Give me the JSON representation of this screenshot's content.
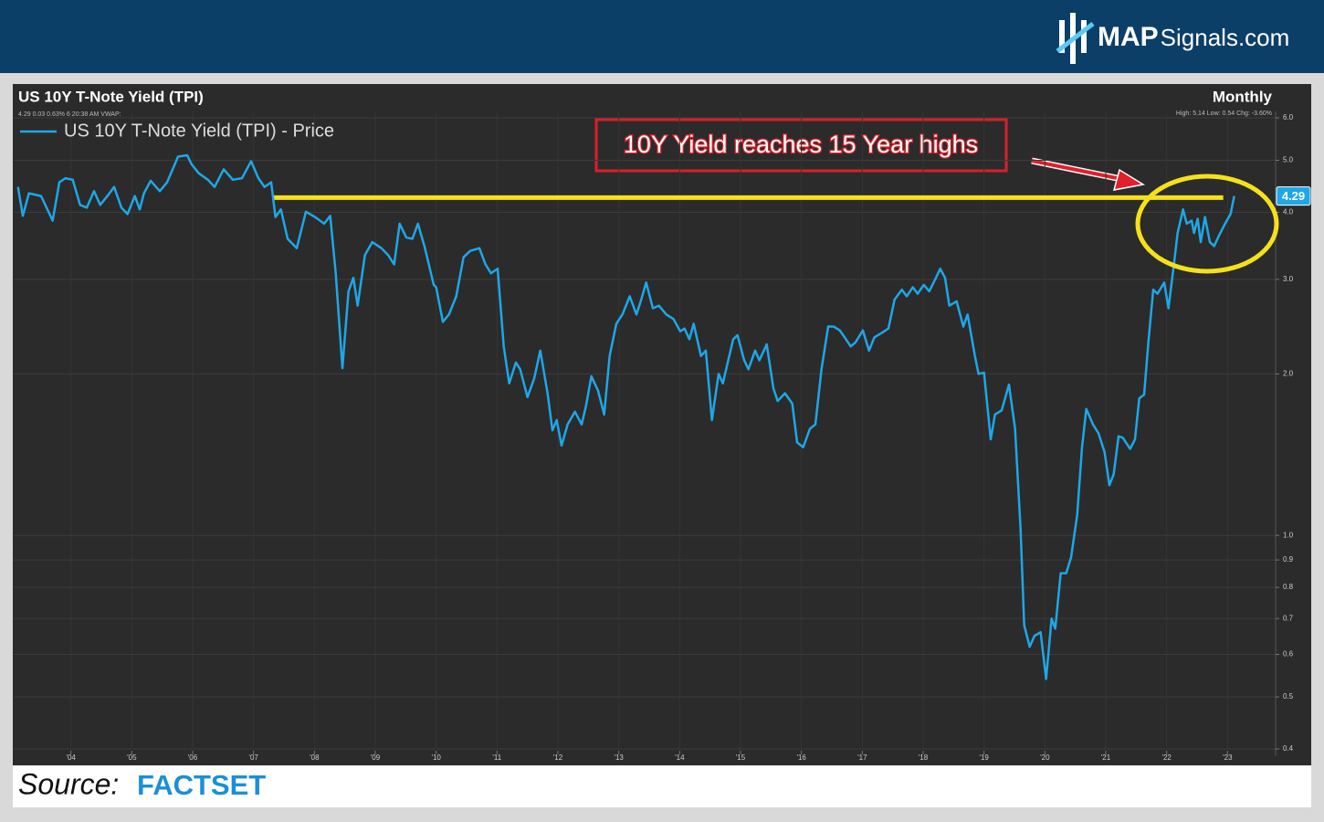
{
  "header": {
    "brand_bold": "MAP",
    "brand_rest": "Signals.com"
  },
  "footer": {
    "source": "Source:",
    "provider": "FACTSET"
  },
  "chart_data": {
    "type": "line",
    "title": "US 10Y T-Note Yield (TPI)",
    "subtitle": "4.29 0.03 0.63% 6:20:38 AM VWAP:",
    "period": "Monthly",
    "stats": "High: 5.14 Low: 0.54 Chg: -3.60%",
    "annotation": "10Y Yield reaches 15 Year highs",
    "reference_line": {
      "value": 4.26,
      "x": [
        2007.33,
        2022.93
      ],
      "color": "#f5e11b"
    },
    "y_scale": "log",
    "grid": true,
    "legend": "top-left",
    "xlim": [
      2003.06,
      2023.79
    ],
    "xticks": [
      {
        "value": 2004,
        "label": "'04"
      },
      {
        "value": 2005,
        "label": "'05"
      },
      {
        "value": 2006,
        "label": "'06"
      },
      {
        "value": 2007,
        "label": "'07"
      },
      {
        "value": 2008,
        "label": "'08"
      },
      {
        "value": 2009,
        "label": "'09"
      },
      {
        "value": 2010,
        "label": "'10"
      },
      {
        "value": 2011,
        "label": "'11"
      },
      {
        "value": 2012,
        "label": "'12"
      },
      {
        "value": 2013,
        "label": "'13"
      },
      {
        "value": 2014,
        "label": "'14"
      },
      {
        "value": 2015,
        "label": "'15"
      },
      {
        "value": 2016,
        "label": "'16"
      },
      {
        "value": 2017,
        "label": "'17"
      },
      {
        "value": 2018,
        "label": "'18"
      },
      {
        "value": 2019,
        "label": "'19"
      },
      {
        "value": 2020,
        "label": "'20"
      },
      {
        "value": 2021,
        "label": "'21"
      },
      {
        "value": 2022,
        "label": "'22"
      },
      {
        "value": 2023,
        "label": "'23"
      }
    ],
    "ylim": [
      0.4,
      6
    ],
    "yticks": [
      0.4,
      0.5,
      0.6,
      0.7,
      0.8,
      0.9,
      {
        "value": 1,
        "label": "1.0"
      },
      {
        "value": 2,
        "label": "2.0"
      },
      {
        "value": 3,
        "label": "3.0"
      },
      {
        "value": 4,
        "label": "4.0"
      },
      {
        "value": 5,
        "label": "5.0"
      },
      {
        "value": 6,
        "label": "6.0"
      }
    ],
    "x": [
      2003.13,
      2003.21,
      2003.31,
      2003.51,
      2003.7,
      2003.81,
      2003.91,
      2004.03,
      2004.15,
      2004.26,
      2004.38,
      2004.48,
      2004.6,
      2004.71,
      2004.83,
      2004.93,
      2005.05,
      2005.13,
      2005.2,
      2005.31,
      2005.46,
      2005.58,
      2005.76,
      2005.91,
      2005.98,
      2006.1,
      2006.25,
      2006.36,
      2006.51,
      2006.66,
      2006.81,
      2006.96,
      2007.08,
      2007.18,
      2007.29,
      2007.36,
      2007.45,
      2007.56,
      2007.71,
      2007.86,
      2008.01,
      2008.16,
      2008.26,
      2008.35,
      2008.46,
      2008.56,
      2008.64,
      2008.71,
      2008.83,
      2008.95,
      2009.1,
      2009.21,
      2009.31,
      2009.4,
      2009.51,
      2009.61,
      2009.7,
      2009.81,
      2009.96,
      2010.0,
      2010.11,
      2010.21,
      2010.33,
      2010.45,
      2010.56,
      2010.71,
      2010.81,
      2010.9,
      2011.01,
      2011.11,
      2011.2,
      2011.31,
      2011.38,
      2011.5,
      2011.61,
      2011.71,
      2011.83,
      2011.91,
      2011.98,
      2012.06,
      2012.16,
      2012.28,
      2012.39,
      2012.46,
      2012.55,
      2012.66,
      2012.76,
      2012.85,
      2012.96,
      2013.06,
      2013.18,
      2013.29,
      2013.36,
      2013.45,
      2013.56,
      2013.66,
      2013.78,
      2013.9,
      2014.01,
      2014.08,
      2014.16,
      2014.23,
      2014.35,
      2014.43,
      2014.53,
      2014.64,
      2014.71,
      2014.79,
      2014.88,
      2014.95,
      2015.06,
      2015.13,
      2015.24,
      2015.31,
      2015.43,
      2015.54,
      2015.61,
      2015.73,
      2015.85,
      2015.93,
      2016.03,
      2016.14,
      2016.23,
      2016.33,
      2016.44,
      2016.53,
      2016.63,
      2016.71,
      2016.81,
      2016.89,
      2017.01,
      2017.11,
      2017.2,
      2017.31,
      2017.43,
      2017.53,
      2017.65,
      2017.73,
      2017.83,
      2017.91,
      2018.01,
      2018.1,
      2018.21,
      2018.28,
      2018.36,
      2018.43,
      2018.55,
      2018.66,
      2018.73,
      2018.85,
      2018.91,
      2019.0,
      2019.11,
      2019.18,
      2019.29,
      2019.41,
      2019.51,
      2019.6,
      2019.66,
      2019.75,
      2019.83,
      2019.93,
      2020.02,
      2020.11,
      2020.17,
      2020.26,
      2020.35,
      2020.43,
      2020.53,
      2020.61,
      2020.68,
      2020.79,
      2020.88,
      2020.98,
      2021.06,
      2021.13,
      2021.21,
      2021.28,
      2021.4,
      2021.48,
      2021.55,
      2021.63,
      2021.7,
      2021.78,
      2021.85,
      2021.96,
      2022.03,
      2022.12,
      2022.18,
      2022.27,
      2022.33,
      2022.41,
      2022.45,
      2022.51,
      2022.56,
      2022.63,
      2022.71,
      2022.78,
      2022.86,
      2022.96,
      2023.05,
      2023.11
    ],
    "series": [
      {
        "name": "US 10Y T-Note Yield (TPI) - Price",
        "color": "#1ea7e8",
        "values": [
          4.46,
          3.94,
          4.34,
          4.29,
          3.86,
          4.55,
          4.63,
          4.6,
          4.13,
          4.08,
          4.38,
          4.13,
          4.29,
          4.46,
          4.08,
          3.97,
          4.29,
          4.05,
          4.34,
          4.58,
          4.38,
          4.55,
          5.08,
          5.11,
          4.92,
          4.73,
          4.6,
          4.46,
          4.81,
          4.6,
          4.63,
          4.98,
          4.63,
          4.46,
          4.55,
          3.92,
          4.05,
          3.57,
          3.43,
          4.01,
          3.92,
          3.81,
          3.94,
          3.08,
          2.05,
          2.85,
          3.02,
          2.68,
          3.33,
          3.52,
          3.43,
          3.33,
          3.2,
          3.81,
          3.59,
          3.57,
          3.81,
          3.45,
          2.93,
          2.9,
          2.5,
          2.58,
          2.79,
          3.3,
          3.39,
          3.43,
          3.2,
          3.08,
          3.14,
          2.25,
          1.92,
          2.1,
          2.04,
          1.81,
          1.96,
          2.21,
          1.84,
          1.57,
          1.64,
          1.47,
          1.61,
          1.7,
          1.61,
          1.74,
          1.98,
          1.86,
          1.68,
          2.16,
          2.48,
          2.58,
          2.79,
          2.58,
          2.73,
          2.96,
          2.65,
          2.68,
          2.58,
          2.53,
          2.4,
          2.43,
          2.32,
          2.48,
          2.16,
          2.21,
          1.64,
          2.0,
          1.92,
          2.1,
          2.32,
          2.36,
          2.12,
          2.04,
          2.21,
          2.12,
          2.27,
          1.88,
          1.78,
          1.84,
          1.76,
          1.49,
          1.46,
          1.58,
          1.61,
          2.04,
          2.45,
          2.45,
          2.41,
          2.34,
          2.25,
          2.29,
          2.41,
          2.21,
          2.34,
          2.38,
          2.43,
          2.75,
          2.87,
          2.79,
          2.9,
          2.82,
          2.93,
          2.85,
          3.02,
          3.14,
          3.02,
          2.68,
          2.73,
          2.45,
          2.58,
          2.16,
          2.0,
          2.01,
          1.51,
          1.68,
          1.71,
          1.91,
          1.58,
          1.03,
          0.68,
          0.62,
          0.65,
          0.66,
          0.54,
          0.7,
          0.67,
          0.85,
          0.85,
          0.91,
          1.09,
          1.46,
          1.72,
          1.61,
          1.55,
          1.43,
          1.24,
          1.3,
          1.53,
          1.52,
          1.45,
          1.51,
          1.8,
          1.83,
          2.29,
          2.87,
          2.82,
          2.96,
          2.65,
          3.2,
          3.66,
          4.05,
          3.81,
          3.86,
          3.66,
          3.89,
          3.52,
          3.92,
          3.52,
          3.46,
          3.62,
          3.81,
          3.97,
          4.29
        ]
      }
    ]
  }
}
